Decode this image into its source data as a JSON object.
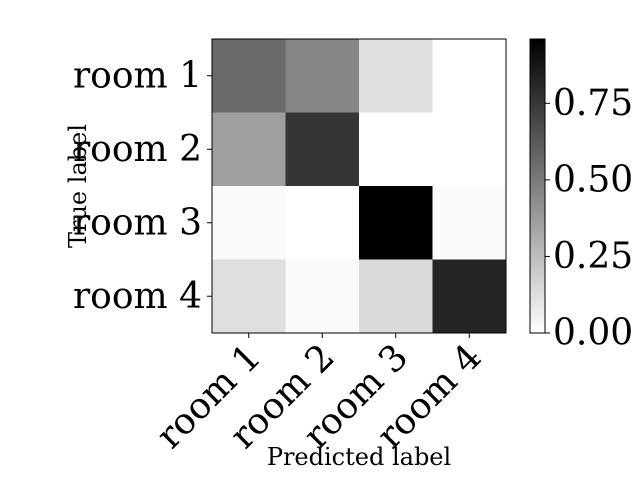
{
  "chart_data": {
    "type": "heatmap",
    "title": "",
    "xlabel": "Predicted label",
    "ylabel": "True label",
    "x_categories": [
      "room 1",
      "room 2",
      "room 3",
      "room 4"
    ],
    "y_categories": [
      "room 1",
      "room 2",
      "room 3",
      "room 4"
    ],
    "values": [
      [
        0.56,
        0.46,
        0.12,
        0.0
      ],
      [
        0.36,
        0.76,
        0.0,
        0.0
      ],
      [
        0.02,
        0.0,
        0.96,
        0.02
      ],
      [
        0.12,
        0.02,
        0.14,
        0.82
      ]
    ],
    "colormap": "Greys",
    "vmin": 0,
    "vmax": 0.96,
    "colorbar_ticks": [
      0.0,
      0.25,
      0.5,
      0.75
    ],
    "colorbar_tick_labels": [
      "0.00",
      "0.25",
      "0.50",
      "0.75"
    ],
    "grid": false
  }
}
